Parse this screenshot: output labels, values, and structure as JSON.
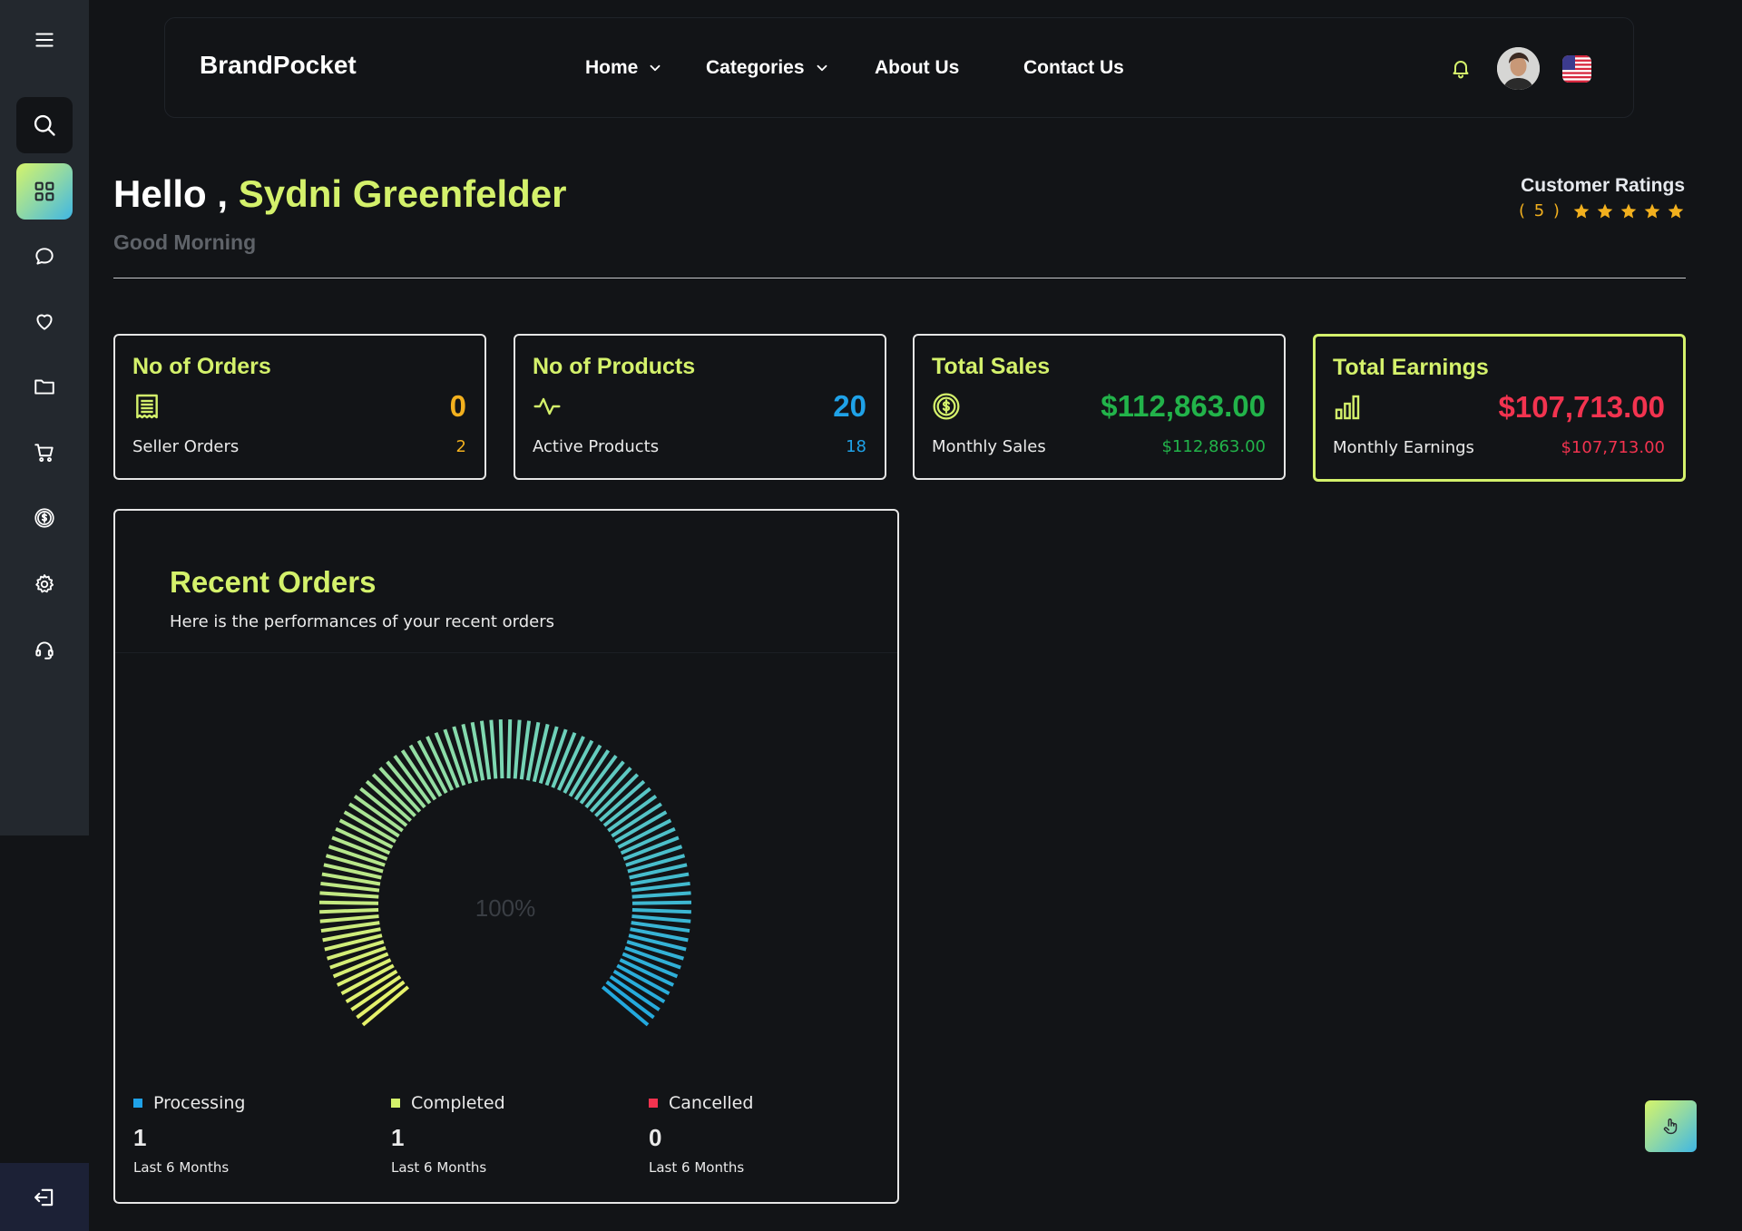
{
  "sidebar": {
    "items": [
      {
        "icon": "menu-icon"
      },
      {
        "icon": "search-icon"
      },
      {
        "icon": "grid-icon"
      },
      {
        "icon": "chat-icon"
      },
      {
        "icon": "heart-icon"
      },
      {
        "icon": "folder-icon"
      },
      {
        "icon": "cart-icon"
      },
      {
        "icon": "dollar-icon"
      },
      {
        "icon": "gear-icon"
      },
      {
        "icon": "headset-icon"
      }
    ],
    "logout_icon": "logout-icon"
  },
  "header": {
    "brand": "BrandPocket",
    "nav": {
      "home": "Home",
      "categories": "Categories",
      "about": "About Us",
      "contact": "Contact Us"
    }
  },
  "greeting": {
    "hello": "Hello ,",
    "name": "Sydni Greenfelder",
    "subtitle": "Good Morning"
  },
  "ratings": {
    "title": "Customer Ratings",
    "count": "( 5 )",
    "stars": 5
  },
  "cards": [
    {
      "title": "No of Orders",
      "value": "0",
      "sub_label": "Seller Orders",
      "sub_value": "2",
      "color": "#f2b01e",
      "icon": "receipt-icon"
    },
    {
      "title": "No of Products",
      "value": "20",
      "sub_label": "Active Products",
      "sub_value": "18",
      "color": "#1fa2e8",
      "icon": "activity-icon"
    },
    {
      "title": "Total Sales",
      "value": "$112,863.00",
      "sub_label": "Monthly Sales",
      "sub_value": "$112,863.00",
      "color": "#22b34a",
      "icon": "dollar-coin-icon"
    },
    {
      "title": "Total Earnings",
      "value": "$107,713.00",
      "sub_label": "Monthly Earnings",
      "sub_value": "$107,713.00",
      "color": "#f2334f",
      "icon": "bar-chart-icon"
    }
  ],
  "recent_orders": {
    "title": "Recent Orders",
    "subtitle": "Here is the performances of your recent orders",
    "gauge_label": "100%",
    "legend": [
      {
        "label": "Processing",
        "value": "1",
        "note": "Last 6 Months",
        "color": "#1fa2e8"
      },
      {
        "label": "Completed",
        "value": "1",
        "note": "Last 6 Months",
        "color": "#d4f16b"
      },
      {
        "label": "Cancelled",
        "value": "0",
        "note": "Last 6 Months",
        "color": "#f2334f"
      }
    ]
  },
  "colors": {
    "accent": "#d4f16b",
    "background": "#121417",
    "sidebar": "#23282e"
  }
}
